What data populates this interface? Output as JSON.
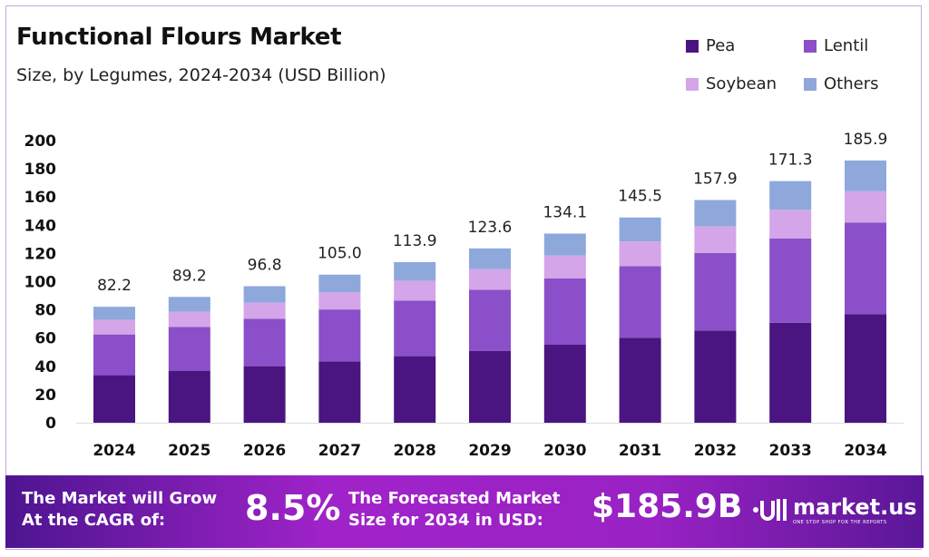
{
  "chart_data": {
    "type": "bar",
    "stacked": true,
    "title": "Functional Flours Market",
    "subtitle": "Size, by Legumes, 2024-2034 (USD Billion)",
    "categories": [
      "2024",
      "2025",
      "2026",
      "2027",
      "2028",
      "2029",
      "2030",
      "2031",
      "2032",
      "2033",
      "2034"
    ],
    "series": [
      {
        "name": "Pea",
        "color": "#4a1580",
        "values": [
          33.7,
          36.9,
          40.1,
          43.5,
          47.2,
          51.0,
          55.3,
          60.2,
          65.4,
          70.9,
          76.9
        ]
      },
      {
        "name": "Lentil",
        "color": "#8a4fc9",
        "values": [
          28.9,
          31.0,
          33.6,
          36.8,
          39.4,
          43.3,
          47.1,
          50.8,
          55.0,
          59.8,
          64.9
        ]
      },
      {
        "name": "Soybean",
        "color": "#d4a5e8",
        "values": [
          10.3,
          10.8,
          11.4,
          12.2,
          14.1,
          14.6,
          16.1,
          17.5,
          18.9,
          20.3,
          22.3
        ]
      },
      {
        "name": "Others",
        "color": "#8ea8dc",
        "values": [
          9.3,
          10.5,
          11.7,
          12.5,
          13.2,
          14.7,
          15.6,
          17.0,
          18.6,
          20.3,
          21.8
        ]
      }
    ],
    "totals": [
      "82.2",
      "89.2",
      "96.8",
      "105.0",
      "113.9",
      "123.6",
      "134.1",
      "145.5",
      "157.9",
      "171.3",
      "185.9"
    ],
    "yticks": [
      "0",
      "20",
      "40",
      "60",
      "80",
      "100",
      "120",
      "140",
      "160",
      "180",
      "200"
    ],
    "ylim": [
      0,
      200
    ],
    "grid": false,
    "legend_position": "top-right"
  },
  "banner": {
    "cagr_label_1": "The Market will Grow",
    "cagr_label_2": "At the CAGR of:",
    "cagr_value": "8.5%",
    "forecast_label_1": "The Forecasted Market",
    "forecast_label_2": "Size for 2034 in USD:",
    "forecast_value": "$185.9B",
    "logo_name": "market.us",
    "logo_tagline": "ONE STOP SHOP FOR THE REPORTS"
  }
}
